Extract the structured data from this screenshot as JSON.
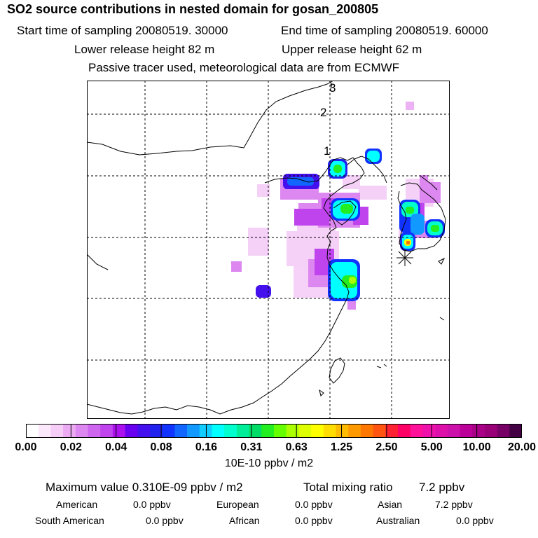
{
  "header": {
    "title": "SO2 source contributions in nested domain for gosan_200805",
    "start_time": "Start time of sampling 20080519. 30000",
    "end_time": "End time of sampling 20080519. 60000",
    "lower_height": "Lower release height   82 m",
    "upper_height": "Upper release height   62 m",
    "tracer_note": "Passive tracer used, meteorological data are from ECMWF"
  },
  "map": {
    "grid_labels": [
      "1",
      "2",
      "3"
    ],
    "receptor_marker": "asterisk-icon"
  },
  "colorbar": {
    "labels": [
      "0.00",
      "0.02",
      "0.04",
      "0.08",
      "0.16",
      "0.31",
      "0.63",
      "1.25",
      "2.50",
      "5.00",
      "10.00",
      "20.00"
    ],
    "colors": [
      "#ffffff",
      "#fbe8fb",
      "#f5cdf7",
      "#ecaaf3",
      "#dd88f0",
      "#cf66ef",
      "#c044ee",
      "#aa11ee",
      "#6a00f0",
      "#4411ee",
      "#2222ee",
      "#1133ff",
      "#1166ff",
      "#1199ff",
      "#11ccff",
      "#00ffff",
      "#00ffcc",
      "#00ee99",
      "#00dd66",
      "#22ee22",
      "#66ff00",
      "#aaff00",
      "#ddff00",
      "#ffff00",
      "#ffdd00",
      "#ffbb00",
      "#ff9900",
      "#ff7700",
      "#ff5511",
      "#ff2233",
      "#ff0066",
      "#ff1199",
      "#ee11aa",
      "#dd11aa",
      "#cc11aa",
      "#bb0099",
      "#aa0088",
      "#990077",
      "#770066",
      "#440044"
    ],
    "units": "10E-10 ppbv / m2"
  },
  "summary": {
    "max_value": "Maximum value  0.310E-09 ppbv / m2",
    "total_mixing_label": "Total mixing ratio",
    "total_mixing_value": "7.2 ppbv",
    "regions": [
      {
        "name": "American",
        "value": "0.0 ppbv"
      },
      {
        "name": "European",
        "value": "0.0 ppbv"
      },
      {
        "name": "Asian",
        "value": "7.2 ppbv"
      },
      {
        "name": "South American",
        "value": "0.0 ppbv"
      },
      {
        "name": "African",
        "value": "0.0 ppbv"
      },
      {
        "name": "Australian",
        "value": "0.0 ppbv"
      }
    ]
  }
}
